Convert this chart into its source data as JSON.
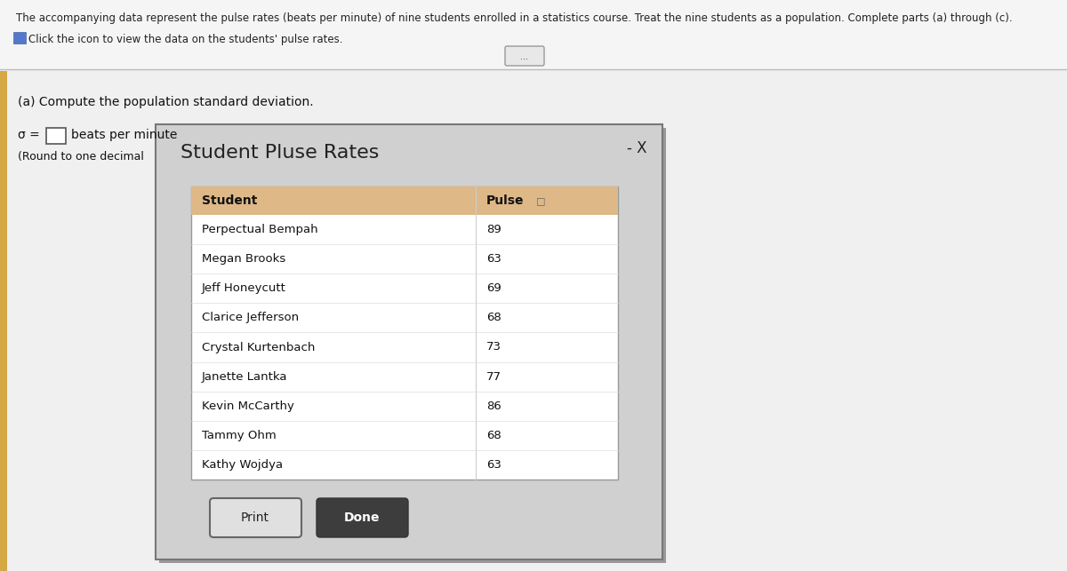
{
  "main_text_line1": "The accompanying data represent the pulse rates (beats per minute) of nine students enrolled in a statistics course. Treat the nine students as a population. Complete parts (a) through (c).",
  "main_text_line2": "Click the icon to view the data on the students' pulse rates.",
  "part_a_label": "(a) Compute the population standard deviation.",
  "sigma_label": "σ =",
  "beats_label": "beats per minute",
  "round_label": "(Round to one decimal",
  "dialog_title": "Student Pluse Rates",
  "col_header_student": "Student",
  "col_header_pulse": "Pulse",
  "students": [
    "Perpectual Bempah",
    "Megan Brooks",
    "Jeff Honeycutt",
    "Clarice Jefferson",
    "Crystal Kurtenbach",
    "Janette Lantka",
    "Kevin McCarthy",
    "Tammy Ohm",
    "Kathy Wojdya"
  ],
  "pulses": [
    89,
    63,
    69,
    68,
    73,
    77,
    86,
    68,
    63
  ],
  "page_bg": "#f0f0f0",
  "top_bg": "#ffffff",
  "dialog_bg": "#cccccc",
  "table_bg": "#ffffff",
  "header_bg": "#deb887",
  "print_label": "Print",
  "done_label": "Done",
  "minus_x_label": "- X",
  "ellipsis_label": "...",
  "left_strip_color": "#d4a843"
}
